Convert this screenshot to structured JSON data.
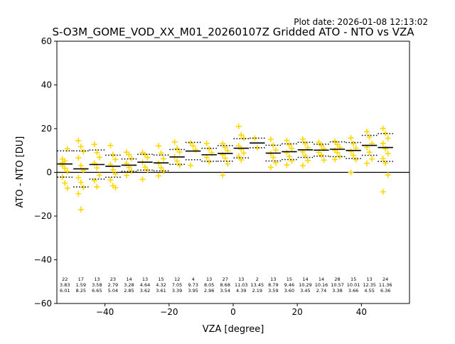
{
  "plot_date": "Plot date: 2026-01-08 12:13:02",
  "chart_data": {
    "type": "scatter",
    "title": "S-O3M_GOME_VOD_XX_M01_20260107Z Gridded ATO - NTO vs VZA",
    "xlabel": "VZA [degree]",
    "ylabel": "ATO - NTO [DU]",
    "xlim": [
      -55,
      55
    ],
    "ylim": [
      -60,
      60
    ],
    "xticks": [
      -40,
      -20,
      0,
      20,
      40
    ],
    "yticks": [
      -60,
      -40,
      -20,
      0,
      20,
      40,
      60
    ],
    "grid": false,
    "zero_line": 0,
    "colors": {
      "points": "#ffd700",
      "mean": "#000000",
      "std": "#000000",
      "zero": "#000000"
    },
    "bins": [
      {
        "x": -52.5,
        "n": "22",
        "mean": "3.83",
        "std": "6.01",
        "points": [
          6.1,
          5.2,
          10.8,
          4.5,
          1.9,
          0.4,
          -2.1,
          -4.9,
          -7.2,
          3.0
        ]
      },
      {
        "x": -47.5,
        "n": "17",
        "mean": "1.59",
        "std": "8.25",
        "points": [
          14.5,
          11.8,
          9.5,
          6.6,
          3.1,
          0.9,
          -2.4,
          -4.6,
          -6.9,
          -9.8,
          -17.0
        ]
      },
      {
        "x": -42.5,
        "n": "13",
        "mean": "3.58",
        "std": "6.65",
        "points": [
          12.8,
          9.1,
          6.9,
          4.2,
          2.0,
          -1.3,
          -3.8,
          -6.6
        ]
      },
      {
        "x": -37.5,
        "n": "23",
        "mean": "2.79",
        "std": "5.04",
        "points": [
          12.3,
          8.1,
          5.9,
          3.6,
          1.2,
          -0.7,
          -3.5,
          -6.1,
          -7.0
        ]
      },
      {
        "x": -32.5,
        "n": "14",
        "mean": "3.28",
        "std": "2.85",
        "points": [
          9.2,
          8.1,
          6.3,
          4.1,
          2.2,
          0.6,
          -1.4
        ]
      },
      {
        "x": -27.5,
        "n": "13",
        "mean": "4.64",
        "std": "3.62",
        "points": [
          9.1,
          8.1,
          6.8,
          4.6,
          2.4,
          1.0,
          -3.2
        ]
      },
      {
        "x": -22.5,
        "n": "15",
        "mean": "4.32",
        "std": "3.61",
        "points": [
          12.1,
          8.8,
          6.2,
          4.1,
          2.1,
          0.4,
          -1.6
        ]
      },
      {
        "x": -17.5,
        "n": "12",
        "mean": "7.05",
        "std": "3.39",
        "points": [
          13.9,
          11.0,
          9.3,
          7.1,
          5.2,
          3.2
        ]
      },
      {
        "x": -12.5,
        "n": "4",
        "mean": "9.73",
        "std": "3.95",
        "points": [
          13.4,
          12.1,
          10.3,
          3.2
        ]
      },
      {
        "x": -7.5,
        "n": "13",
        "mean": "8.05",
        "std": "2.96",
        "points": [
          13.2,
          10.8,
          8.9,
          6.8,
          4.8
        ]
      },
      {
        "x": -2.5,
        "n": "27",
        "mean": "8.68",
        "std": "3.54",
        "points": [
          13.1,
          11.4,
          9.8,
          8.1,
          6.5,
          3.9,
          -1.3
        ]
      },
      {
        "x": 2.5,
        "n": "13",
        "mean": "11.03",
        "std": "4.39",
        "points": [
          21.0,
          17.1,
          15.6,
          12.1,
          10.6,
          8.8,
          7.4,
          5.7
        ]
      },
      {
        "x": 7.5,
        "n": "2",
        "mean": "13.45",
        "std": "2.19",
        "points": [
          15.6,
          11.3
        ]
      },
      {
        "x": 12.5,
        "n": "13",
        "mean": "8.79",
        "std": "3.59",
        "points": [
          15.1,
          12.4,
          10.2,
          8.6,
          6.8,
          4.4,
          2.3
        ]
      },
      {
        "x": 17.5,
        "n": "15",
        "mean": "9.46",
        "std": "3.60",
        "points": [
          14.6,
          12.6,
          10.9,
          9.1,
          7.2,
          5.2,
          3.4
        ]
      },
      {
        "x": 22.5,
        "n": "14",
        "mean": "10.29",
        "std": "3.45",
        "points": [
          15.2,
          13.1,
          11.2,
          9.4,
          7.6,
          5.4,
          3.1
        ]
      },
      {
        "x": 27.5,
        "n": "14",
        "mean": "10.16",
        "std": "2.74",
        "points": [
          13.8,
          12.3,
          10.8,
          9.2,
          7.9,
          5.6
        ]
      },
      {
        "x": 32.5,
        "n": "28",
        "mean": "10.57",
        "std": "3.38",
        "points": [
          14.2,
          12.8,
          11.4,
          10.1,
          9.0,
          7.2,
          5.9
        ]
      },
      {
        "x": 37.5,
        "n": "15",
        "mean": "10.01",
        "std": "3.66",
        "points": [
          15.8,
          13.1,
          11.1,
          9.6,
          7.8,
          5.8,
          0.0
        ]
      },
      {
        "x": 42.5,
        "n": "13",
        "mean": "12.35",
        "std": "4.55",
        "points": [
          18.6,
          16.1,
          13.2,
          11.4,
          9.2,
          6.1,
          4.1
        ]
      },
      {
        "x": 47.5,
        "n": "24",
        "mean": "11.36",
        "std": "6.36",
        "points": [
          20.1,
          17.9,
          15.6,
          13.2,
          10.8,
          8.6,
          6.3,
          4.2,
          -1.2,
          -8.9
        ]
      }
    ]
  }
}
